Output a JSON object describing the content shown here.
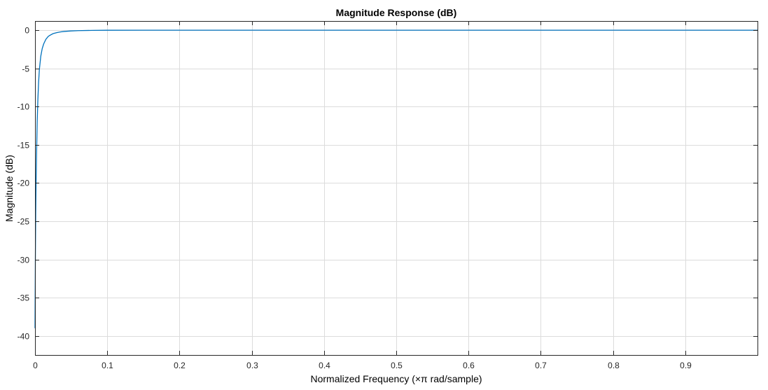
{
  "chart_data": {
    "type": "line",
    "title": "Magnitude Response (dB)",
    "xlabel": "Normalized Frequency (×π rad/sample)",
    "ylabel": "Magnitude (dB)",
    "xlim": [
      0,
      1
    ],
    "ylim": [
      -42.5,
      1.2
    ],
    "xticks": [
      0,
      0.1,
      0.2,
      0.3,
      0.4,
      0.5,
      0.6,
      0.7,
      0.8,
      0.9
    ],
    "xtick_labels": [
      "0",
      "0.1",
      "0.2",
      "0.3",
      "0.4",
      "0.5",
      "0.6",
      "0.7",
      "0.8",
      "0.9"
    ],
    "yticks": [
      0,
      -5,
      -10,
      -15,
      -20,
      -25,
      -30,
      -35,
      -40
    ],
    "ytick_labels": [
      "0",
      "-5",
      "-10",
      "-15",
      "-20",
      "-25",
      "-30",
      "-35",
      "-40"
    ],
    "grid": true,
    "line_color": "#0072bd",
    "series": [
      {
        "x": [
          0,
          0.0005,
          0.001,
          0.0015,
          0.002,
          0.003,
          0.004,
          0.005,
          0.006,
          0.008,
          0.01,
          0.012,
          0.015,
          0.018,
          0.02,
          0.025,
          0.03,
          0.035,
          0.04,
          0.05,
          0.06,
          0.08,
          0.1,
          0.15,
          0.2,
          0.3,
          0.5,
          0.7,
          1.0
        ],
        "y": [
          -39,
          -30,
          -24,
          -20,
          -17,
          -12,
          -9.0,
          -6.8,
          -5.2,
          -3.4,
          -2.4,
          -1.8,
          -1.2,
          -0.85,
          -0.7,
          -0.45,
          -0.32,
          -0.23,
          -0.17,
          -0.1,
          -0.06,
          -0.025,
          -0.01,
          0,
          0,
          0,
          0,
          0,
          0
        ]
      }
    ]
  }
}
